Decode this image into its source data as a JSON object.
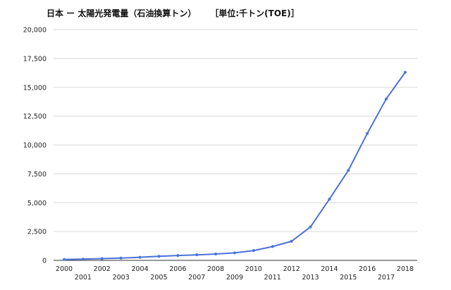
{
  "chart_data": {
    "type": "line",
    "title": "日本 ー 太陽光発電量（石油換算トン）",
    "unit_label": "［単位:千トン(TOE)］",
    "xlabel": "",
    "ylabel": "",
    "x": [
      2000,
      2001,
      2002,
      2003,
      2004,
      2005,
      2006,
      2007,
      2008,
      2009,
      2010,
      2011,
      2012,
      2013,
      2014,
      2015,
      2016,
      2017,
      2018
    ],
    "x_tick_labels": [
      "2000",
      "2001",
      "2002",
      "2003",
      "2004",
      "2005",
      "2006",
      "2007",
      "2008",
      "2009",
      "2010",
      "2011",
      "2012",
      "2013",
      "2014",
      "2015",
      "2016",
      "2017",
      "2018"
    ],
    "y_ticks": [
      0,
      2500,
      5000,
      7500,
      10000,
      12500,
      15000,
      17500,
      20000
    ],
    "y_tick_labels": [
      "0",
      "2,500",
      "5,000",
      "7,500",
      "10,000",
      "12,500",
      "15,000",
      "17,500",
      "20,000"
    ],
    "ylim": [
      0,
      20000
    ],
    "series": [
      {
        "values": [
          80,
          110,
          150,
          200,
          270,
          350,
          420,
          480,
          550,
          650,
          850,
          1200,
          1650,
          2900,
          5300,
          7800,
          11000,
          14000,
          16300
        ],
        "color": "#4a72d8"
      }
    ],
    "grid": true,
    "legend": "none"
  }
}
